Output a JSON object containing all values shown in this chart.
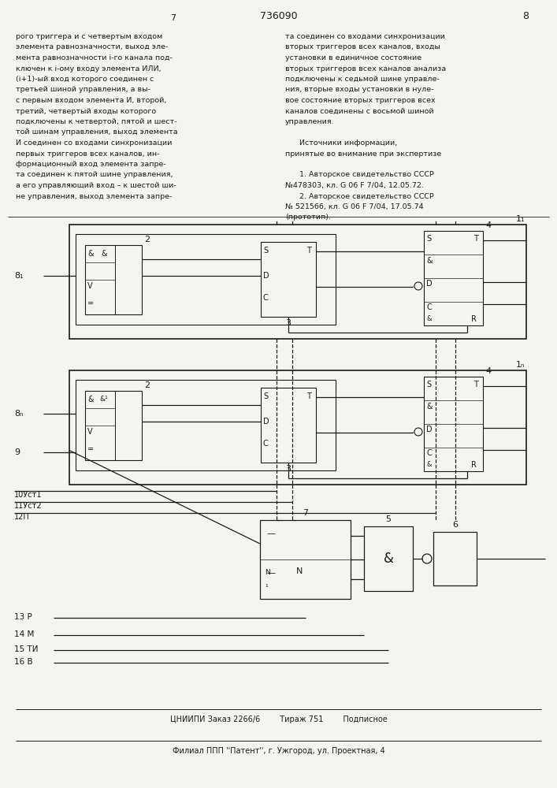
{
  "bg_color": "#f5f5f0",
  "line_color": "#1a1a1a",
  "text_color": "#1a1a1a",
  "patent_number": "736090",
  "page_number": "8",
  "top_text_left": [
    "рого триггера и с четвертым входом",
    "элемента равнозначности, выход эле-",
    "мента равнозначности i-го канала под-",
    "ключен к i-ому входу элемента ИЛИ,",
    "(i+1)-ый вход которого соединен с",
    "третьей шиной управления, а вы-",
    "с первым входом элемента И, второй,",
    "третий, четвертый входы которого",
    "подключены к четвертой, пятой и шест-",
    "той шинам управления, выход элемента",
    "И соединен со входами синхронизации",
    "первых триггеров всех каналов, ин-",
    "формационный вход элемента запре-",
    "та соединен к пятой шине управления,",
    "а его управляющий вход – к шестой ши-",
    "не управления, выход элемента запре-"
  ],
  "top_text_right": [
    "та соединен со входами синхронизации",
    "вторых триггеров всех каналов, входы",
    "установки в единичное состояние",
    "вторых триггеров всех каналов анализа",
    "подключены к седьмой шине управле-",
    "ния, вторые входы установки в нуле-",
    "вое состояние вторых триггеров всех",
    "каналов соединены с восьмой шиной",
    "управления.",
    "",
    "      Источники информации,",
    "принятые во внимание при экспертизе",
    "",
    "      1. Авторское свидетельство СССР",
    "№478303, кл. G 06 F 7/04, 12.05.72.",
    "      2. Авторское свидетельство СССР",
    "№ 521566, кл. G 06 F 7/04, 17.05.74",
    "(прототип)."
  ],
  "footer_line1": "ЦНИИПИ Заказ 2266/6        Тираж 751        Подписное",
  "footer_line2": "Филиал ППП ''Патент'', г. Ужгород, ул. Проектная, 4",
  "signal_labels_left": [
    "10Уст1",
    "11Уст2",
    "12П"
  ],
  "signal_labels_bottom": [
    "13 Р",
    "14 М",
    "15 ТИ",
    "16 В"
  ]
}
